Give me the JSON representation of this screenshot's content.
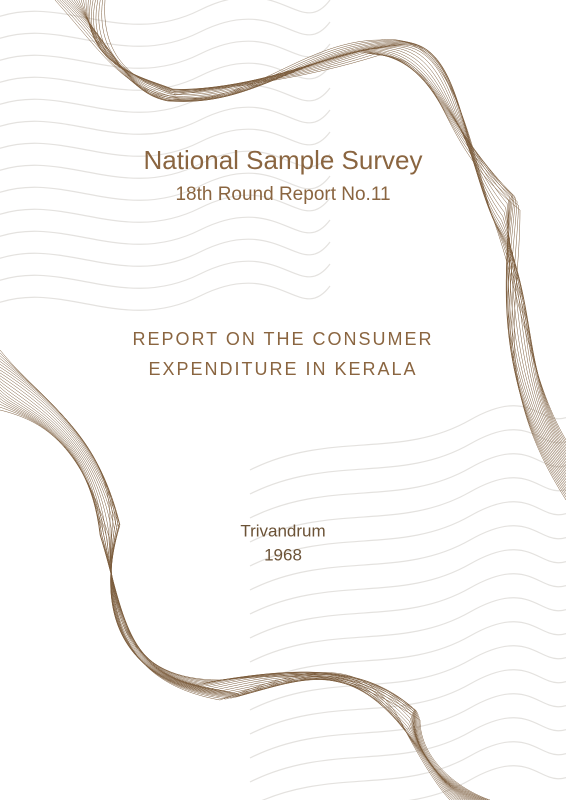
{
  "header": {
    "title": "National Sample Survey",
    "subtitle": "18th Round Report No.11"
  },
  "report": {
    "title_lines": [
      "REPORT ON THE CONSUMER",
      "EXPENDITURE IN KERALA"
    ]
  },
  "footer": {
    "place": "Trivandrum",
    "year": "1968"
  }
}
